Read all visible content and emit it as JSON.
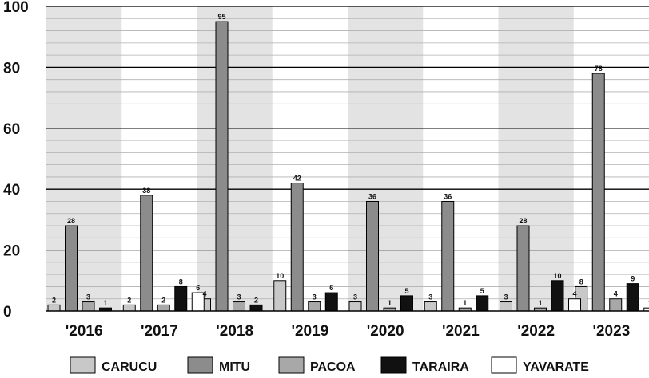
{
  "chart_data": {
    "type": "bar",
    "categories": [
      "'2016",
      "'2017",
      "'2018",
      "'2019",
      "'2020",
      "'2021",
      "'2022",
      "'2023"
    ],
    "series": [
      {
        "name": "CARUCU",
        "color": "#c8c8c8",
        "values": [
          2,
          2,
          4,
          10,
          3,
          3,
          3,
          8
        ]
      },
      {
        "name": "MITU",
        "color": "#8c8c8c",
        "values": [
          28,
          38,
          95,
          42,
          36,
          36,
          28,
          78
        ]
      },
      {
        "name": "PACOA",
        "color": "#a8a8a8",
        "values": [
          3,
          2,
          3,
          3,
          1,
          1,
          1,
          4
        ]
      },
      {
        "name": "TARAIRA",
        "color": "#111111",
        "values": [
          1,
          8,
          2,
          6,
          5,
          5,
          10,
          9
        ]
      },
      {
        "name": "YAVARATE",
        "color": "#ffffff",
        "values": [
          null,
          6,
          null,
          null,
          null,
          null,
          4,
          1
        ]
      }
    ],
    "yticks": [
      0,
      20,
      40,
      60,
      80,
      100
    ],
    "ylim": [
      0,
      100
    ],
    "grid": true,
    "minor_grid_step": 4,
    "alternating_band_color": "#e3e3e3",
    "legend_position": "bottom"
  }
}
